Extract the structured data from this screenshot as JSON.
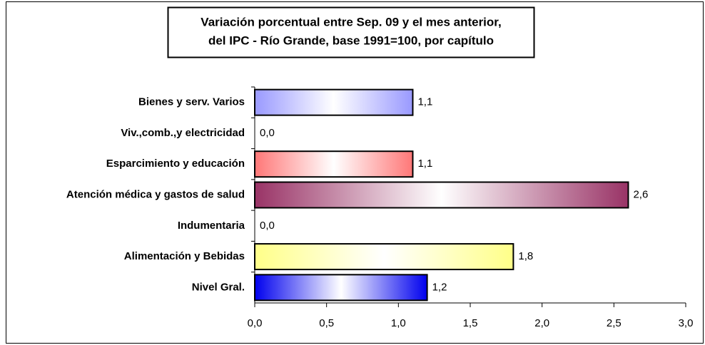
{
  "chart_data": {
    "type": "bar",
    "orientation": "horizontal",
    "title": [
      "Variación porcentual entre Sep. 09 y el mes anterior,",
      "del IPC - Río Grande, base 1991=100, por capítulo"
    ],
    "categories": [
      "Bienes y serv. Varios",
      "Viv.,comb.,y electricidad",
      "Esparcimiento y educación",
      "Atención médica y gastos de salud",
      "Indumentaria",
      "Alimentación y Bebidas",
      "Nivel Gral."
    ],
    "values": [
      1.1,
      0.0,
      1.1,
      2.6,
      0.0,
      1.8,
      1.2
    ],
    "value_labels": [
      "1,1",
      "0,0",
      "1,1",
      "2,6",
      "0,0",
      "1,8",
      "1,2"
    ],
    "colors": [
      "#9999ff",
      "#9999ff",
      "#ff7777",
      "#993366",
      "#ffffcc",
      "#ffff88",
      "#0000ee"
    ],
    "xlim": [
      0,
      3
    ],
    "xticks": [
      {
        "value": 0,
        "label": "0,0"
      },
      {
        "value": 0.5,
        "label": "0,5"
      },
      {
        "value": 1,
        "label": "1,0"
      },
      {
        "value": 1.5,
        "label": "1,5"
      },
      {
        "value": 2,
        "label": "2,0"
      },
      {
        "value": 2.5,
        "label": "2,5"
      },
      {
        "value": 3,
        "label": "3,0"
      }
    ],
    "grid": false
  }
}
